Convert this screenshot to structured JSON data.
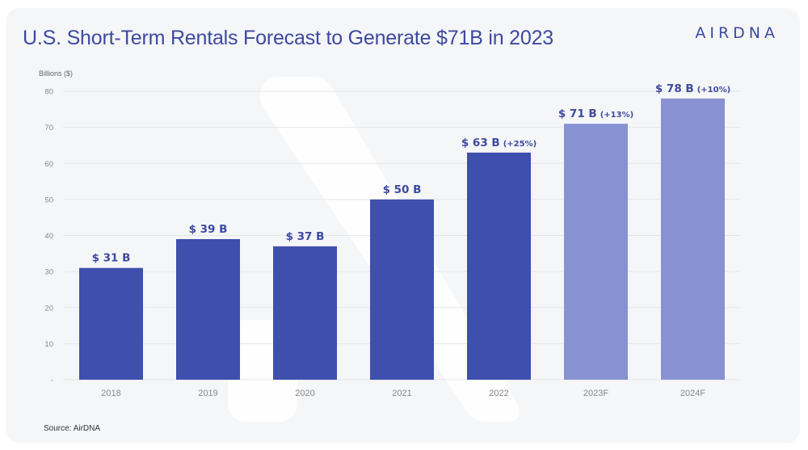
{
  "header": {
    "title": "U.S. Short-Term Rentals Forecast to Generate $71B in 2023",
    "logo": "AIRDNA"
  },
  "footer": {
    "source": "Source: AirDNA"
  },
  "colors": {
    "actual": "#3f4fae",
    "forecast": "#8892d2",
    "title": "#3d4aa0",
    "grid": "#e3e5ea",
    "background": "#f5f6f8"
  },
  "chart_data": {
    "type": "bar",
    "title": "U.S. Short-Term Rentals Forecast to Generate $71B in 2023",
    "ylabel": "Billions ($)",
    "xlabel": "",
    "ylim": [
      0,
      80
    ],
    "yticks": [
      0,
      10,
      20,
      30,
      40,
      50,
      60,
      70,
      80
    ],
    "ytick_labels": [
      "-",
      "10",
      "20",
      "30",
      "40",
      "50",
      "60",
      "70",
      "80"
    ],
    "grid": true,
    "categories": [
      "2018",
      "2019",
      "2020",
      "2021",
      "2022",
      "2023F",
      "2024F"
    ],
    "values": [
      31,
      39,
      37,
      50,
      63,
      71,
      78
    ],
    "forecast": [
      false,
      false,
      false,
      false,
      false,
      true,
      true
    ],
    "labels": [
      "$ 31 B",
      "$ 39 B",
      "$ 37 B",
      "$ 50 B",
      "$ 63 B",
      "$ 71 B",
      "$ 78 B"
    ],
    "growth_labels": [
      "",
      "",
      "",
      "",
      "(+25%)",
      "(+13%)",
      "(+10%)"
    ]
  }
}
